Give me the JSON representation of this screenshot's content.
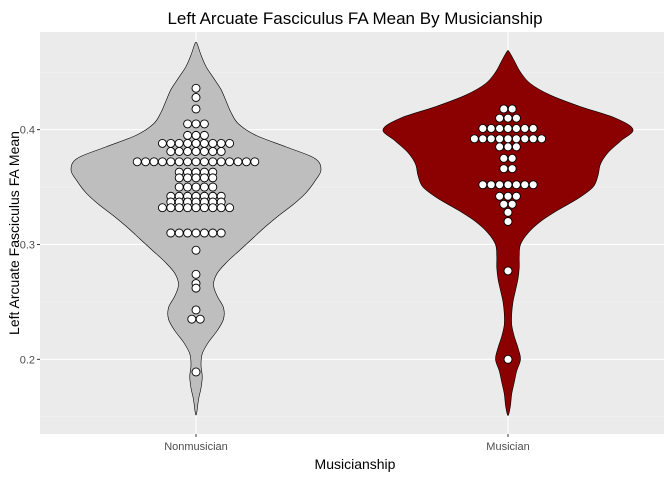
{
  "chart_data": {
    "type": "violin",
    "title": "Left Arcuate Fasciculus FA Mean By Musicianship",
    "xlabel": "Musicianship",
    "ylabel": "Left Arcuate Fasciculus FA Mean",
    "ylim": [
      0.135,
      0.485
    ],
    "yticks": [
      0.2,
      0.3,
      0.4
    ],
    "ytick_labels": [
      "0.2",
      "0.3",
      "0.4"
    ],
    "categories": [
      "Nonmusician",
      "Musician"
    ],
    "grid": true,
    "colors": {
      "panel": "#EBEBEB",
      "grid_major": "#FFFFFF",
      "grid_minor": "#F5F5F5",
      "tick": "#333333",
      "outline": "#000000",
      "point_fill": "#FFFFFF"
    },
    "series": [
      {
        "name": "Nonmusician",
        "fill": "#BEBEBE",
        "density": [
          [
            0.153,
            0.005
          ],
          [
            0.165,
            0.02
          ],
          [
            0.175,
            0.04
          ],
          [
            0.185,
            0.05
          ],
          [
            0.195,
            0.04
          ],
          [
            0.205,
            0.05
          ],
          [
            0.215,
            0.1
          ],
          [
            0.225,
            0.17
          ],
          [
            0.235,
            0.22
          ],
          [
            0.245,
            0.22
          ],
          [
            0.255,
            0.17
          ],
          [
            0.265,
            0.14
          ],
          [
            0.275,
            0.17
          ],
          [
            0.285,
            0.25
          ],
          [
            0.295,
            0.35
          ],
          [
            0.305,
            0.45
          ],
          [
            0.315,
            0.55
          ],
          [
            0.325,
            0.66
          ],
          [
            0.335,
            0.78
          ],
          [
            0.345,
            0.88
          ],
          [
            0.355,
            0.95
          ],
          [
            0.365,
            1.0
          ],
          [
            0.375,
            0.95
          ],
          [
            0.385,
            0.72
          ],
          [
            0.395,
            0.48
          ],
          [
            0.405,
            0.34
          ],
          [
            0.415,
            0.28
          ],
          [
            0.425,
            0.24
          ],
          [
            0.435,
            0.2
          ],
          [
            0.445,
            0.14
          ],
          [
            0.455,
            0.08
          ],
          [
            0.465,
            0.04
          ],
          [
            0.475,
            0.008
          ]
        ],
        "points": [
          [
            0.436,
            1
          ],
          [
            0.428,
            1
          ],
          [
            0.418,
            1
          ],
          [
            0.405,
            3
          ],
          [
            0.395,
            3
          ],
          [
            0.388,
            9
          ],
          [
            0.381,
            7
          ],
          [
            0.372,
            15
          ],
          [
            0.363,
            5
          ],
          [
            0.358,
            5
          ],
          [
            0.35,
            5
          ],
          [
            0.342,
            7
          ],
          [
            0.337,
            7
          ],
          [
            0.332,
            9
          ],
          [
            0.31,
            7
          ],
          [
            0.295,
            1
          ],
          [
            0.274,
            1
          ],
          [
            0.266,
            1
          ],
          [
            0.262,
            1
          ],
          [
            0.243,
            1
          ],
          [
            0.235,
            2
          ],
          [
            0.189,
            1
          ]
        ]
      },
      {
        "name": "Musician",
        "fill": "#8B0000",
        "density": [
          [
            0.152,
            0.005
          ],
          [
            0.16,
            0.02
          ],
          [
            0.17,
            0.03
          ],
          [
            0.18,
            0.05
          ],
          [
            0.19,
            0.07
          ],
          [
            0.2,
            0.1
          ],
          [
            0.21,
            0.08
          ],
          [
            0.22,
            0.05
          ],
          [
            0.23,
            0.03
          ],
          [
            0.24,
            0.03
          ],
          [
            0.25,
            0.04
          ],
          [
            0.26,
            0.06
          ],
          [
            0.27,
            0.08
          ],
          [
            0.28,
            0.09
          ],
          [
            0.29,
            0.09
          ],
          [
            0.3,
            0.1
          ],
          [
            0.31,
            0.16
          ],
          [
            0.32,
            0.26
          ],
          [
            0.33,
            0.4
          ],
          [
            0.34,
            0.56
          ],
          [
            0.35,
            0.68
          ],
          [
            0.36,
            0.72
          ],
          [
            0.37,
            0.74
          ],
          [
            0.38,
            0.8
          ],
          [
            0.39,
            0.9
          ],
          [
            0.4,
            1.0
          ],
          [
            0.41,
            0.86
          ],
          [
            0.42,
            0.58
          ],
          [
            0.43,
            0.34
          ],
          [
            0.44,
            0.18
          ],
          [
            0.45,
            0.1
          ],
          [
            0.46,
            0.05
          ],
          [
            0.468,
            0.008
          ]
        ],
        "points": [
          [
            0.418,
            2
          ],
          [
            0.41,
            3
          ],
          [
            0.401,
            7
          ],
          [
            0.392,
            9
          ],
          [
            0.385,
            3
          ],
          [
            0.375,
            2
          ],
          [
            0.366,
            2
          ],
          [
            0.352,
            7
          ],
          [
            0.342,
            3
          ],
          [
            0.335,
            2
          ],
          [
            0.328,
            1
          ],
          [
            0.32,
            1
          ],
          [
            0.277,
            1
          ],
          [
            0.2,
            1
          ]
        ]
      }
    ]
  }
}
